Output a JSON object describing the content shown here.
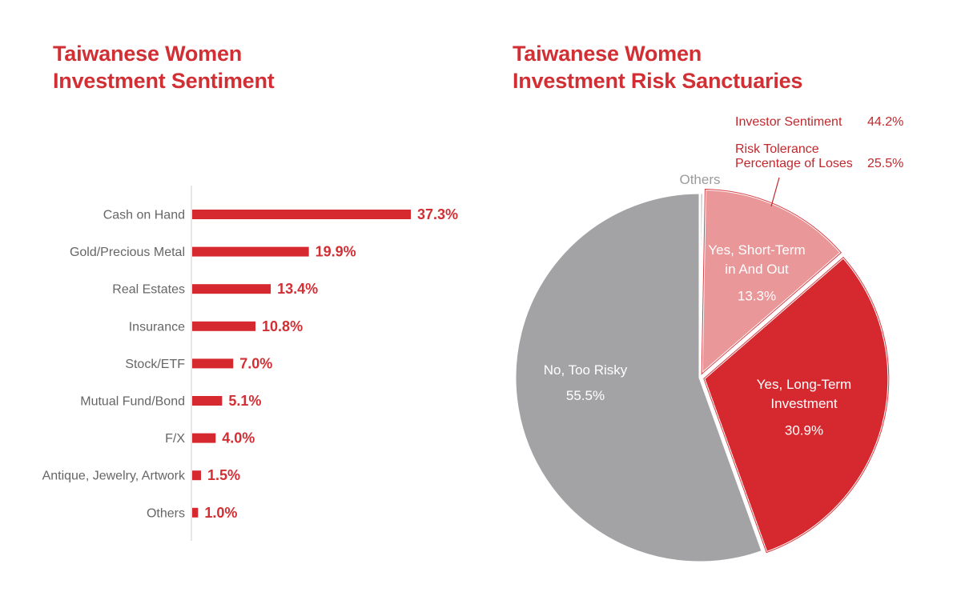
{
  "colors": {
    "accent": "#d22f34",
    "bar": "#d6292f",
    "gray": "#a3a3a5",
    "light_red": "#e99799",
    "others": "#bdbdbd",
    "axis": "#cfcfcf"
  },
  "chart_data": [
    {
      "type": "bar",
      "orientation": "horizontal",
      "title": [
        "Taiwanese Women",
        "Investment Sentiment"
      ],
      "categories": [
        "Cash on Hand",
        "Gold/Precious Metal",
        "Real Estates",
        "Insurance",
        "Stock/ETF",
        "Mutual Fund/Bond",
        "F/X",
        "Antique, Jewelry, Artwork",
        "Others"
      ],
      "values": [
        37.3,
        19.9,
        13.4,
        10.8,
        7.0,
        5.1,
        4.0,
        1.5,
        1.0
      ],
      "value_labels": [
        "37.3%",
        "19.9%",
        "13.4%",
        "10.8%",
        "7.0%",
        "5.1%",
        "4.0%",
        "1.5%",
        "1.0%"
      ],
      "grid": false
    },
    {
      "type": "pie",
      "title": [
        "Taiwanese Women",
        "Investment Risk Sanctuaries"
      ],
      "slices": [
        {
          "label": [
            "Others"
          ],
          "value": 0.3,
          "value_label": "",
          "color": "#bdbdbd"
        },
        {
          "label": [
            "Yes, Short-Term",
            "in And Out"
          ],
          "value": 13.3,
          "value_label": "13.3%",
          "color": "#e99799"
        },
        {
          "label": [
            "Yes, Long-Term",
            "Investment"
          ],
          "value": 30.9,
          "value_label": "30.9%",
          "color": "#d6292f"
        },
        {
          "label": [
            "No, Too Risky"
          ],
          "value": 55.5,
          "value_label": "55.5%",
          "color": "#a3a3a5"
        }
      ],
      "annotations": [
        {
          "label": [
            "Investor Sentiment"
          ],
          "value": "44.2%"
        },
        {
          "label": [
            "Risk Tolerance",
            "Percentage of Loses"
          ],
          "value": "25.5%"
        }
      ]
    }
  ]
}
